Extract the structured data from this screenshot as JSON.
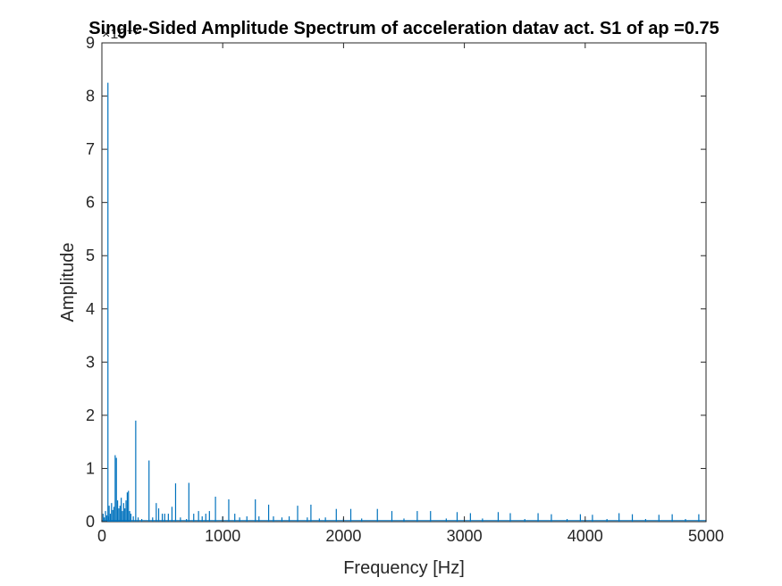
{
  "chart_data": {
    "type": "line",
    "title": "Single-Sided Amplitude Spectrum of acceleration datav act. S1 of ap =0.75",
    "xlabel": "Frequency [Hz]",
    "ylabel": "Amplitude",
    "y_exponent": "×10⁻⁷",
    "xlim": [
      0,
      5000
    ],
    "ylim": [
      0,
      9
    ],
    "xticks": [
      "0",
      "1000",
      "2000",
      "3000",
      "4000",
      "5000"
    ],
    "yticks": [
      "0",
      "1",
      "2",
      "3",
      "4",
      "5",
      "6",
      "7",
      "8",
      "9"
    ],
    "grid": false,
    "legend": "none",
    "series": [
      {
        "color": "#0072bd",
        "points": [
          [
            0,
            0.03
          ],
          [
            10,
            0.15
          ],
          [
            20,
            0.08
          ],
          [
            30,
            0.2
          ],
          [
            40,
            0.12
          ],
          [
            50,
            8.25
          ],
          [
            55,
            0.1
          ],
          [
            60,
            0.3
          ],
          [
            70,
            0.15
          ],
          [
            80,
            0.35
          ],
          [
            90,
            0.22
          ],
          [
            100,
            0.28
          ],
          [
            110,
            1.25
          ],
          [
            120,
            1.2
          ],
          [
            130,
            0.4
          ],
          [
            140,
            0.25
          ],
          [
            150,
            0.3
          ],
          [
            160,
            0.45
          ],
          [
            170,
            0.2
          ],
          [
            180,
            0.35
          ],
          [
            190,
            0.25
          ],
          [
            200,
            0.4
          ],
          [
            210,
            0.55
          ],
          [
            220,
            0.58
          ],
          [
            230,
            0.2
          ],
          [
            240,
            0.15
          ],
          [
            260,
            0.1
          ],
          [
            280,
            1.9
          ],
          [
            300,
            0.08
          ],
          [
            330,
            0.05
          ],
          [
            390,
            1.15
          ],
          [
            420,
            0.08
          ],
          [
            450,
            0.35
          ],
          [
            470,
            0.25
          ],
          [
            500,
            0.15
          ],
          [
            520,
            0.15
          ],
          [
            550,
            0.15
          ],
          [
            580,
            0.28
          ],
          [
            610,
            0.72
          ],
          [
            650,
            0.08
          ],
          [
            700,
            0.05
          ],
          [
            720,
            0.73
          ],
          [
            760,
            0.15
          ],
          [
            800,
            0.2
          ],
          [
            830,
            0.1
          ],
          [
            860,
            0.15
          ],
          [
            890,
            0.2
          ],
          [
            940,
            0.47
          ],
          [
            1000,
            0.1
          ],
          [
            1050,
            0.42
          ],
          [
            1100,
            0.15
          ],
          [
            1140,
            0.08
          ],
          [
            1200,
            0.1
          ],
          [
            1270,
            0.42
          ],
          [
            1300,
            0.1
          ],
          [
            1380,
            0.32
          ],
          [
            1420,
            0.1
          ],
          [
            1490,
            0.08
          ],
          [
            1550,
            0.1
          ],
          [
            1620,
            0.3
          ],
          [
            1700,
            0.08
          ],
          [
            1730,
            0.32
          ],
          [
            1800,
            0.06
          ],
          [
            1850,
            0.08
          ],
          [
            1940,
            0.24
          ],
          [
            2000,
            0.06
          ],
          [
            2060,
            0.24
          ],
          [
            2150,
            0.06
          ],
          [
            2280,
            0.24
          ],
          [
            2400,
            0.2
          ],
          [
            2500,
            0.06
          ],
          [
            2610,
            0.2
          ],
          [
            2720,
            0.2
          ],
          [
            2850,
            0.06
          ],
          [
            2940,
            0.18
          ],
          [
            3050,
            0.16
          ],
          [
            3150,
            0.06
          ],
          [
            3280,
            0.18
          ],
          [
            3380,
            0.16
          ],
          [
            3500,
            0.05
          ],
          [
            3610,
            0.16
          ],
          [
            3720,
            0.14
          ],
          [
            3850,
            0.05
          ],
          [
            3960,
            0.14
          ],
          [
            4060,
            0.13
          ],
          [
            4180,
            0.05
          ],
          [
            4280,
            0.16
          ],
          [
            4390,
            0.14
          ],
          [
            4500,
            0.05
          ],
          [
            4610,
            0.13
          ],
          [
            4720,
            0.14
          ],
          [
            4830,
            0.05
          ],
          [
            4940,
            0.14
          ],
          [
            5000,
            0.03
          ]
        ]
      }
    ]
  }
}
